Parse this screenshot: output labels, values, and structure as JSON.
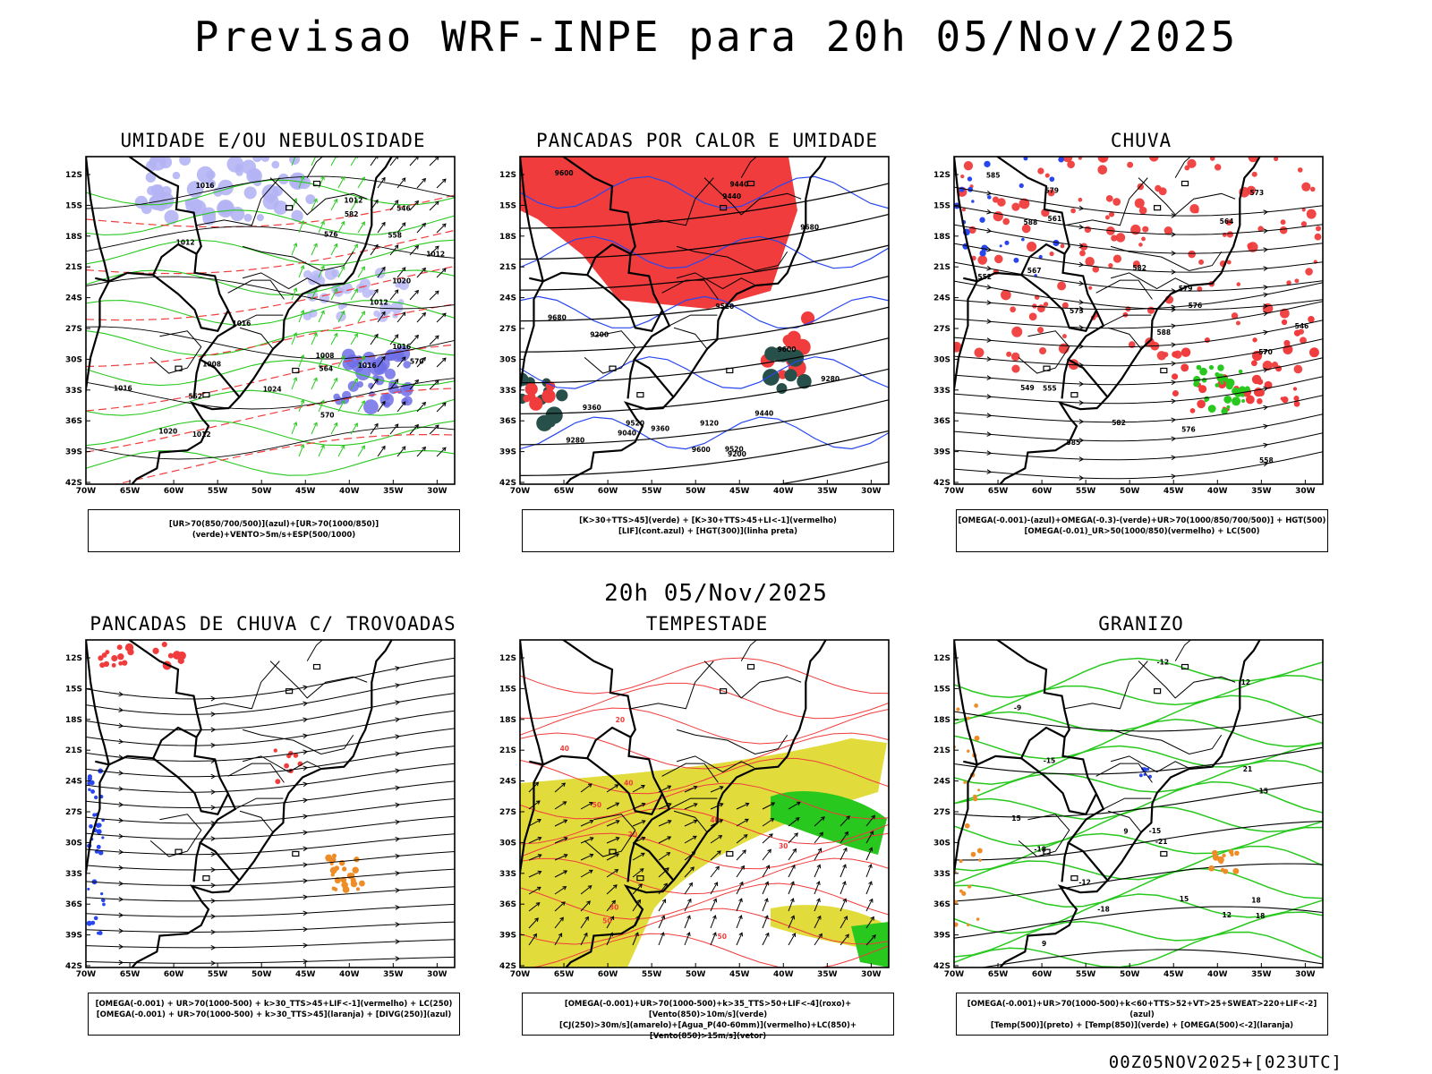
{
  "title": "Previsao WRF-INPE  para 20h 05/Nov/2025",
  "subtitle": "20h 05/Nov/2025",
  "footer": "00Z05NOV2025+[023UTC]",
  "axes": {
    "lat": [
      "12S",
      "15S",
      "18S",
      "21S",
      "24S",
      "27S",
      "30S",
      "33S",
      "36S",
      "39S",
      "42S"
    ],
    "lon": [
      "70W",
      "65W",
      "60W",
      "55W",
      "50W",
      "45W",
      "40W",
      "35W",
      "30W"
    ]
  },
  "colors": {
    "red": "#f03c3c",
    "green": "#28c81e",
    "blue": "#2846f0",
    "lavender": "#b4b4f5",
    "purple": "#6e6ee6",
    "darkgreen": "#28504b",
    "yellow": "#e1dc3c",
    "orange": "#ee8c28"
  },
  "panels": [
    {
      "name": "umidade",
      "title": "UMIDADE E/OU NEBULOSIDADE",
      "legend": [
        "[UR>70(850/700/500)](azul)+[UR>70(1000/850)](verde)+VENTO>5m/s+ESP(500/1000)"
      ],
      "labels": [
        "1012",
        "1012",
        "1012",
        "1012",
        "1016",
        "1020",
        "1008",
        "1012",
        "1016",
        "1020",
        "1016",
        "1024",
        "1016",
        "1016",
        "1008",
        "570",
        "570",
        "564",
        "558",
        "552",
        "546",
        "582",
        "576"
      ],
      "layers": [
        "lavender",
        "green-contour",
        "red-dashed",
        "black-isobar",
        "arrows"
      ]
    },
    {
      "name": "pancadas-calor",
      "title": "PANCADAS POR CALOR E UMIDADE",
      "legend": [
        "[K>30+TTS>45](verde) + [K>30+TTS>45+LI<-1](vermelho)",
        "[LIF](cont.azul) + [HGT(300)](linha preta)"
      ],
      "labels": [
        "9680",
        "9680",
        "9600",
        "9600",
        "9600",
        "9520",
        "9520",
        "9520",
        "9440",
        "9440",
        "9440",
        "9360",
        "9360",
        "9280",
        "9280",
        "9200",
        "9200",
        "9120",
        "9040"
      ],
      "layers": [
        "red-fill",
        "darkgreen-fill",
        "blue-contour",
        "black-contour"
      ]
    },
    {
      "name": "chuva",
      "title": "CHUVA",
      "legend": [
        "[OMEGA(-0.001)-(azul)+OMEGA(-0.3)-(verde)+UR>70(1000/850/700/500)] + HGT(500)",
        "[OMEGA(-0.01)_UR>50(1000/850)(vermelho) + LC(500)"
      ],
      "labels": [
        "588",
        "585",
        "582",
        "579",
        "576",
        "573",
        "570",
        "567",
        "564",
        "561",
        "558",
        "555",
        "552",
        "549",
        "546",
        "588",
        "585",
        "582",
        "579",
        "576",
        "573"
      ],
      "layers": [
        "red-patches",
        "blue-patches",
        "green-patches",
        "streamlines"
      ]
    },
    {
      "name": "trovoadas",
      "title": "PANCADAS DE CHUVA C/ TROVOADAS",
      "legend": [
        "[OMEGA(-0.001) + UR>70(1000-500) + k>30_TTS>45+LIF<-1](vermelho) + LC(250)",
        "[OMEGA(-0.001) + UR>70(1000-500) + k>30_TTS>45](laranja) + [DIVG(250)](azul)"
      ],
      "labels": [],
      "layers": [
        "red-patches",
        "blue-dots",
        "orange-patch",
        "streamlines"
      ]
    },
    {
      "name": "tempestade",
      "title": "TEMPESTADE",
      "legend": [
        "[OMEGA(-0.001)+UR>70(1000-500)+k>35_TTS>50+LIF<-4](roxo)+[Vento(850)>10m/s](verde)",
        "[CJ(250)>30m/s](amarelo)+[Agua_P(40-60mm)](vermelho)+LC(850)+[Vento(850)>15m/s](vetor)"
      ],
      "labels": [
        "50",
        "50",
        "40",
        "40",
        "40",
        "30",
        "30",
        "20",
        "20",
        "50"
      ],
      "layers": [
        "yellow-fill",
        "green-fill",
        "red-contour",
        "arrows"
      ]
    },
    {
      "name": "granizo",
      "title": "GRANIZO",
      "legend": [
        "[OMEGA(-0.001)+UR>70(1000-500)+k<60+TTS>52+VT>25+SWEAT>220+LIF<-2](azul)",
        "[Temp(500)](preto) + [Temp(850)](verde) + [OMEGA(500)<-2](laranja)"
      ],
      "labels": [
        "-12",
        "-9",
        "-12",
        "-15",
        "-18",
        "-21",
        "-15",
        "-18",
        "15",
        "15",
        "18",
        "18",
        "21",
        "12",
        "12",
        "9",
        "9",
        "15"
      ],
      "layers": [
        "green-contour",
        "black-contour",
        "orange-patch",
        "blue-dots"
      ]
    }
  ]
}
